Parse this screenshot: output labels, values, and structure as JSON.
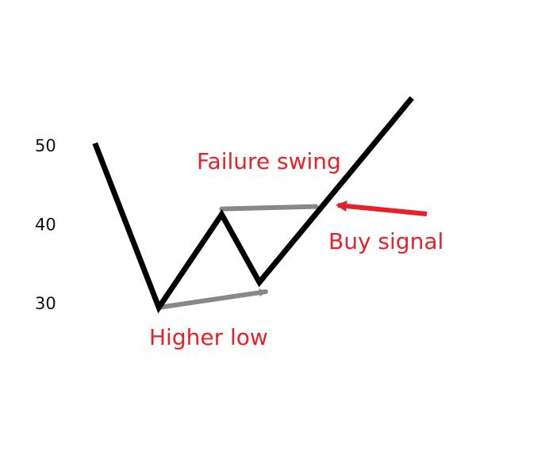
{
  "chart_data": {
    "type": "line",
    "yticks": [
      30,
      40,
      50
    ],
    "ylim": [
      25,
      57
    ],
    "grid": false,
    "series": [
      {
        "color": "#000000",
        "points": [
          {
            "x": 0,
            "y": 50
          },
          {
            "x": 1,
            "y": 29.5
          },
          {
            "x": 2,
            "y": 41.3
          },
          {
            "x": 2.6,
            "y": 32.7
          },
          {
            "x": 5,
            "y": 55.8
          }
        ]
      }
    ],
    "reference_lines": [
      {
        "from": {
          "x": 1,
          "y": 29.5
        },
        "to": {
          "x": 2.7,
          "y": 31.5
        },
        "color": "#888888",
        "arrow": true
      },
      {
        "from": {
          "x": 2,
          "y": 42
        },
        "to": {
          "x": 3.5,
          "y": 42.3
        },
        "color": "#888888",
        "arrow": false
      }
    ],
    "annotations": [
      {
        "text": "Failure swing",
        "color": "#e8202a"
      },
      {
        "text": "Buy signal",
        "color": "#e8202a",
        "arrow_color": "#e8202a"
      },
      {
        "text": "Higher low",
        "color": "#e8202a"
      }
    ]
  }
}
